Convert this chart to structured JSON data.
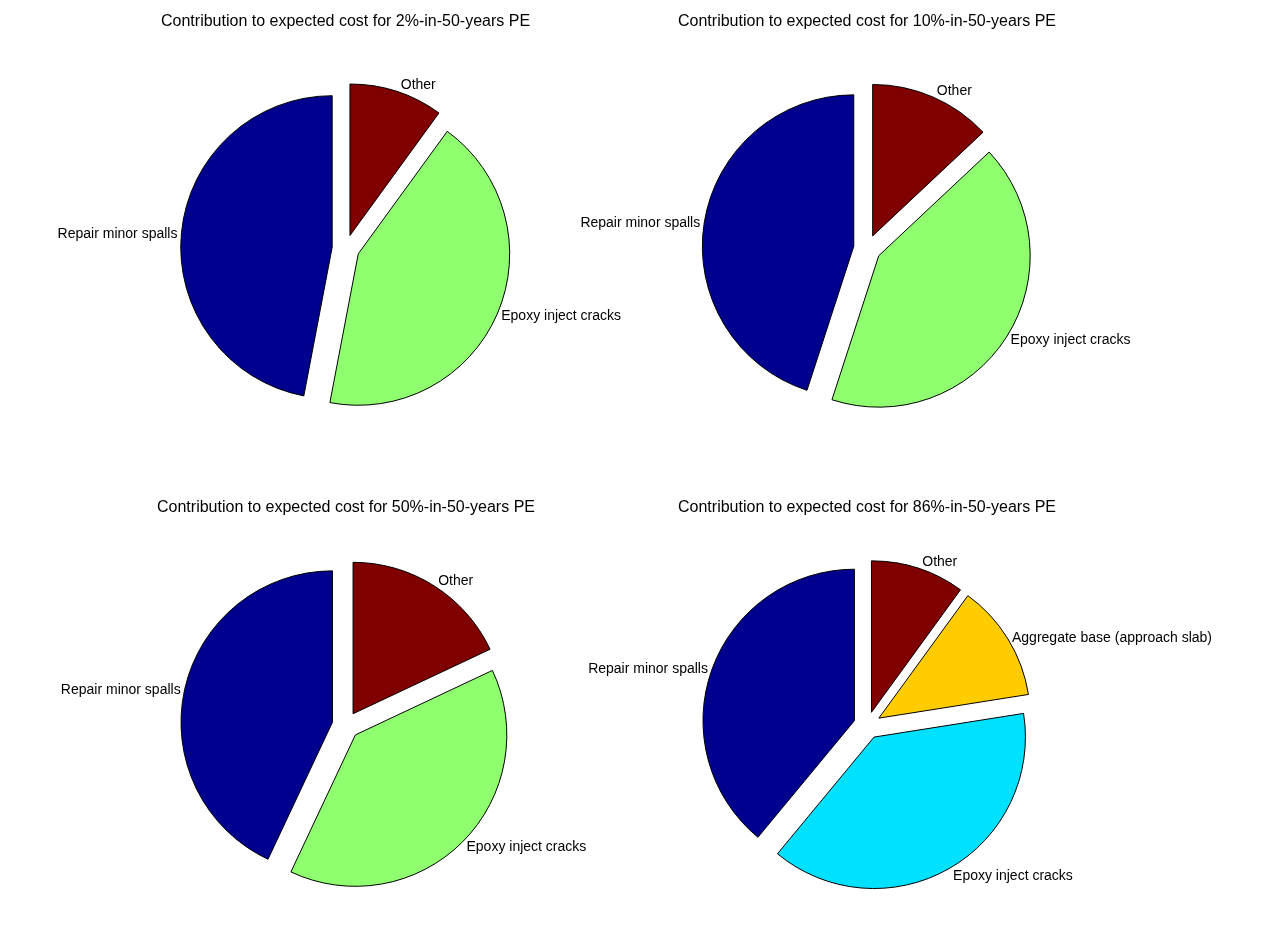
{
  "chart_data": [
    {
      "type": "pie",
      "title": "Contribution to expected cost for 2%-in-50-years PE",
      "categories": [
        "Other",
        "Epoxy inject cracks",
        "Repair minor spalls"
      ],
      "values": [
        10,
        43,
        47
      ],
      "colors": [
        "#800000",
        "#8fff70",
        "#00008f"
      ],
      "legend": false
    },
    {
      "type": "pie",
      "title": "Contribution to expected cost for 10%-in-50-years PE",
      "categories": [
        "Other",
        "Epoxy inject cracks",
        "Repair minor spalls"
      ],
      "values": [
        13,
        42,
        45
      ],
      "colors": [
        "#800000",
        "#8fff70",
        "#00008f"
      ],
      "legend": false
    },
    {
      "type": "pie",
      "title": "Contribution to expected cost for 50%-in-50-years PE",
      "categories": [
        "Other",
        "Epoxy inject cracks",
        "Repair minor spalls"
      ],
      "values": [
        18,
        39,
        43
      ],
      "colors": [
        "#800000",
        "#8fff70",
        "#00008f"
      ],
      "legend": false
    },
    {
      "type": "pie",
      "title": "Contribution to expected cost for 86%-in-50-years PE",
      "categories": [
        "Other",
        "Aggregate base (approach slab)",
        "Epoxy inject cracks",
        "Repair minor spalls"
      ],
      "values": [
        10,
        12.5,
        38.5,
        39
      ],
      "colors": [
        "#800000",
        "#ffcc00",
        "#00e0ff",
        "#00008f"
      ],
      "legend": false
    }
  ]
}
